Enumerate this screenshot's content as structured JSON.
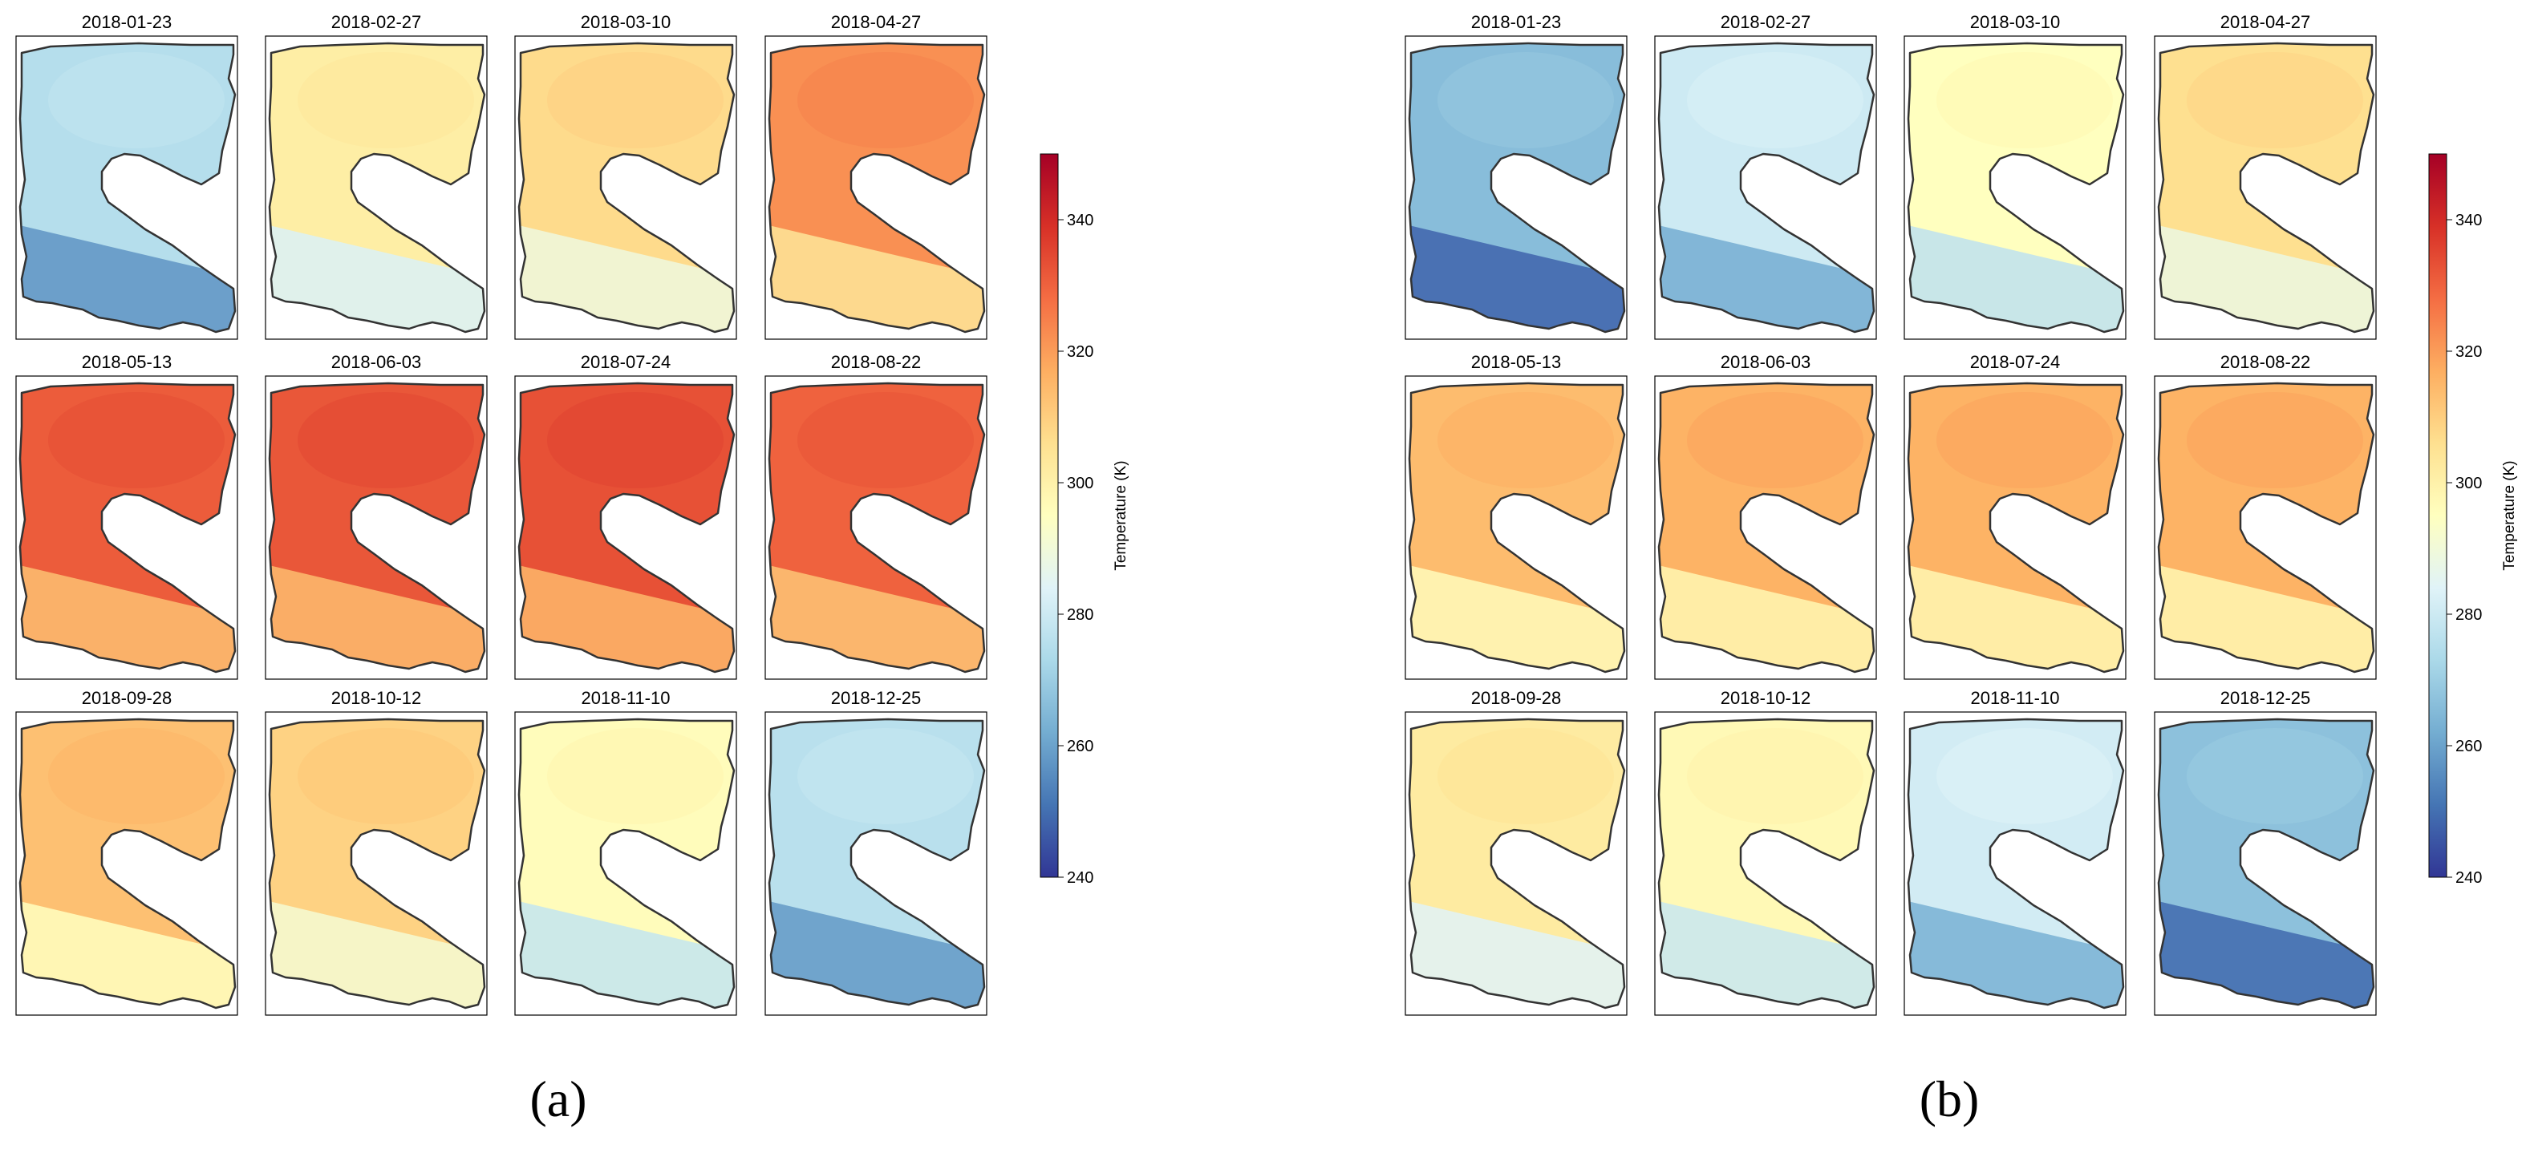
{
  "figure": {
    "panels": [
      {
        "id": "a",
        "label": "(a)",
        "maps": [
          {
            "date": "2018-01-23",
            "mean_temperature_k": 275
          },
          {
            "date": "2018-02-27",
            "mean_temperature_k": 301
          },
          {
            "date": "2018-03-10",
            "mean_temperature_k": 307
          },
          {
            "date": "2018-04-27",
            "mean_temperature_k": 322
          },
          {
            "date": "2018-05-13",
            "mean_temperature_k": 331
          },
          {
            "date": "2018-06-03",
            "mean_temperature_k": 332
          },
          {
            "date": "2018-07-24",
            "mean_temperature_k": 333
          },
          {
            "date": "2018-08-22",
            "mean_temperature_k": 330
          },
          {
            "date": "2018-09-28",
            "mean_temperature_k": 313
          },
          {
            "date": "2018-10-12",
            "mean_temperature_k": 309
          },
          {
            "date": "2018-11-10",
            "mean_temperature_k": 296
          },
          {
            "date": "2018-12-25",
            "mean_temperature_k": 276
          }
        ],
        "colorbar": {
          "label": "Temperature (K)",
          "ticks": [
            "240",
            "260",
            "280",
            "300",
            "320",
            "340"
          ]
        }
      },
      {
        "id": "b",
        "label": "(b)",
        "maps": [
          {
            "date": "2018-01-23",
            "mean_temperature_k": 266
          },
          {
            "date": "2018-02-27",
            "mean_temperature_k": 280
          },
          {
            "date": "2018-03-10",
            "mean_temperature_k": 295
          },
          {
            "date": "2018-04-27",
            "mean_temperature_k": 306
          },
          {
            "date": "2018-05-13",
            "mean_temperature_k": 314
          },
          {
            "date": "2018-06-03",
            "mean_temperature_k": 316
          },
          {
            "date": "2018-07-24",
            "mean_temperature_k": 316
          },
          {
            "date": "2018-08-22",
            "mean_temperature_k": 316
          },
          {
            "date": "2018-09-28",
            "mean_temperature_k": 302
          },
          {
            "date": "2018-10-12",
            "mean_temperature_k": 297
          },
          {
            "date": "2018-11-10",
            "mean_temperature_k": 281
          },
          {
            "date": "2018-12-25",
            "mean_temperature_k": 267
          }
        ],
        "colorbar": {
          "label": "Temperature (K)",
          "ticks": [
            "240",
            "260",
            "280",
            "300",
            "320",
            "340"
          ]
        }
      }
    ]
  },
  "chart_data": {
    "type": "heatmap",
    "title": "",
    "colormap": "RdYlBu_r",
    "colorbar_label": "Temperature (K)",
    "vmin": 240,
    "vmax": 350,
    "colorbar_ticks": [
      240,
      260,
      280,
      300,
      320,
      340
    ],
    "colors": {
      "stops": [
        "#313695",
        "#4575b4",
        "#74add1",
        "#abd9e9",
        "#e0f3f8",
        "#ffffbf",
        "#fee090",
        "#fdae61",
        "#f46d43",
        "#d73027",
        "#a50026"
      ],
      "outline": "#333333",
      "frame": "#000000",
      "cloud_gap": "#ffffff"
    },
    "panels": [
      {
        "label": "(a)",
        "dates": [
          "2018-01-23",
          "2018-02-27",
          "2018-03-10",
          "2018-04-27",
          "2018-05-13",
          "2018-06-03",
          "2018-07-24",
          "2018-08-22",
          "2018-09-28",
          "2018-10-12",
          "2018-11-10",
          "2018-12-25"
        ],
        "approx_mean_temperature_k": [
          275,
          301,
          307,
          322,
          331,
          332,
          333,
          330,
          313,
          309,
          296,
          276
        ]
      },
      {
        "label": "(b)",
        "dates": [
          "2018-01-23",
          "2018-02-27",
          "2018-03-10",
          "2018-04-27",
          "2018-05-13",
          "2018-06-03",
          "2018-07-24",
          "2018-08-22",
          "2018-09-28",
          "2018-10-12",
          "2018-11-10",
          "2018-12-25"
        ],
        "approx_mean_temperature_k": [
          266,
          280,
          295,
          306,
          314,
          316,
          316,
          316,
          302,
          297,
          281,
          267
        ]
      }
    ]
  }
}
